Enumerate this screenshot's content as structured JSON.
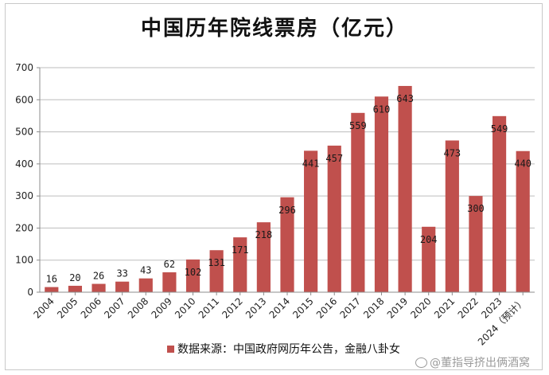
{
  "chart_data": {
    "type": "bar",
    "title": "中国历年院线票房（亿元）",
    "categories": [
      "2004",
      "2005",
      "2006",
      "2007",
      "2008",
      "2009",
      "2010",
      "2011",
      "2012",
      "2013",
      "2014",
      "2015",
      "2016",
      "2017",
      "2018",
      "2019",
      "2020",
      "2021",
      "2022",
      "2023",
      "2024（预计）"
    ],
    "values": [
      16,
      20,
      26,
      33,
      43,
      62,
      102,
      131,
      171,
      218,
      296,
      441,
      457,
      559,
      610,
      643,
      204,
      473,
      300,
      549,
      440
    ],
    "data_labels": [
      "16",
      "20",
      "26",
      "33",
      "43",
      "62",
      "102",
      "131",
      "171",
      "218",
      "296",
      "441",
      "457",
      "559",
      "610",
      "643",
      "204",
      "473",
      "300",
      "549",
      "440"
    ],
    "y_ticks": [
      "0",
      "100",
      "200",
      "300",
      "400",
      "500",
      "600",
      "700"
    ],
    "ylim": [
      0,
      700
    ],
    "xlabel": "",
    "ylabel": "",
    "legend": {
      "label": "数据来源：中国政府网历年公告，金融八卦女",
      "placement": "bottom"
    },
    "grid": "horizontal",
    "bar_color": "#c0504d"
  },
  "watermark": "@董指导挤出俩酒窝"
}
